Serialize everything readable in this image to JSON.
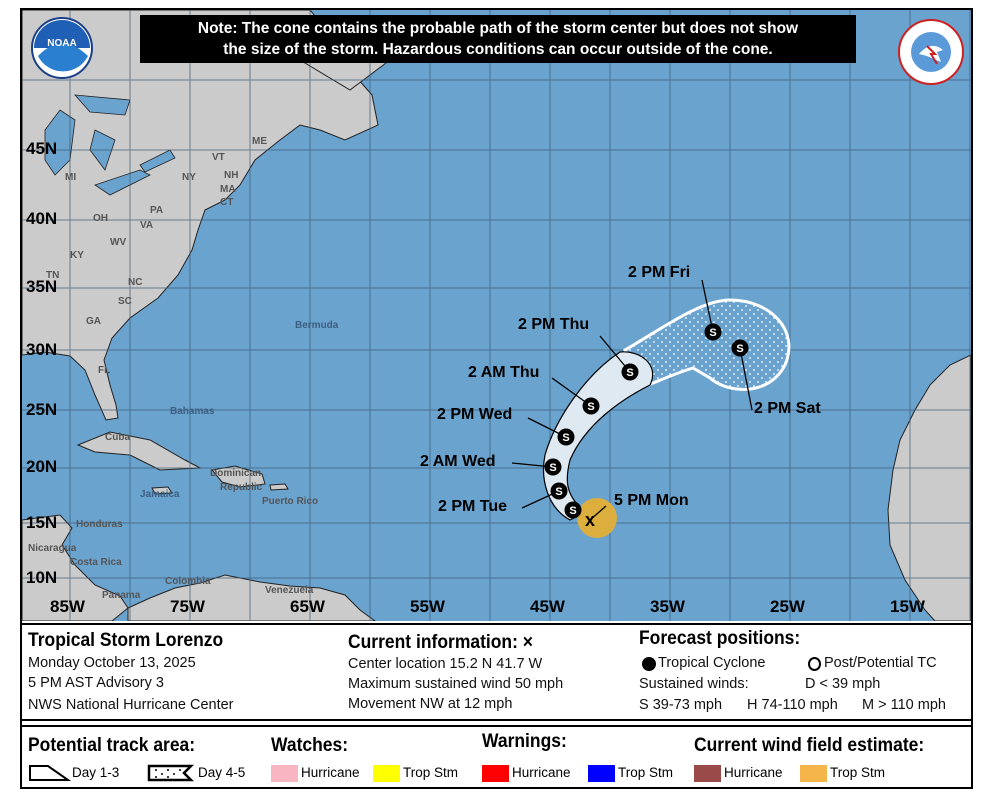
{
  "note": {
    "line1": "Note: The cone contains the probable path of the storm center but does not show",
    "line2": "the size of the storm. Hazardous conditions can occur outside of the cone."
  },
  "logos": {
    "noaa": "NOAA",
    "nws": "NATIONAL WEATHER SERVICE"
  },
  "map": {
    "colors": {
      "ocean": "#6ba3cf",
      "land": "#cbcbcb",
      "cone_day13": "#dfe9f2",
      "wind_ts": "#f0b43c",
      "grid": "#4a6a85"
    },
    "lat_labels": [
      "45N",
      "40N",
      "35N",
      "30N",
      "25N",
      "20N",
      "15N",
      "10N"
    ],
    "lon_labels": [
      "85W",
      "75W",
      "65W",
      "55W",
      "45W",
      "35W",
      "25W",
      "15W"
    ],
    "place_labels": [
      "MI",
      "NY",
      "VT",
      "NH",
      "ME",
      "MA",
      "CT",
      "PA",
      "OH",
      "WV",
      "VA",
      "KY",
      "TN",
      "NC",
      "SC",
      "GA",
      "FL",
      "Bermuda",
      "Bahamas",
      "Cuba",
      "Dominican",
      "Republic",
      "Puerto Rico",
      "Jamaica",
      "Honduras",
      "Nicaragua",
      "Costa Rica",
      "Panama",
      "Colombia",
      "Venezuela"
    ],
    "current_marker": "x",
    "forecast_points": [
      {
        "label": "5 PM Mon",
        "type": "current"
      },
      {
        "label": "2 PM Tue",
        "type": "S"
      },
      {
        "label": "2 AM Wed",
        "type": "S"
      },
      {
        "label": "2 PM Wed",
        "type": "S"
      },
      {
        "label": "2 AM Thu",
        "type": "S"
      },
      {
        "label": "2 PM Thu",
        "type": "S"
      },
      {
        "label": "2 PM Fri",
        "type": "S"
      },
      {
        "label": "2 PM Sat",
        "type": "S"
      }
    ]
  },
  "info": {
    "storm_name": "Tropical Storm Lorenzo",
    "date": "Monday October 13, 2025",
    "advisory": "5 PM AST Advisory 3",
    "center": "NWS National Hurricane Center",
    "current_title": "Current information: ×",
    "location": "Center location 15.2 N 41.7 W",
    "max_wind": "Maximum sustained wind 50 mph",
    "movement": "Movement NW at 12 mph",
    "forecast_title": "Forecast positions:",
    "tc_label": "Tropical Cyclone",
    "ptc_label": "Post/Potential TC",
    "sustained": "Sustained winds:",
    "d_range": "D < 39 mph",
    "s_range": "S 39-73 mph",
    "h_range": "H 74-110 mph",
    "m_range": "M > 110 mph"
  },
  "legend": {
    "track_title": "Potential track area:",
    "day13": "Day 1-3",
    "day45": "Day 4-5",
    "watches_title": "Watches:",
    "warnings_title": "Warnings:",
    "wind_title": "Current wind field estimate:",
    "items": [
      {
        "label": "Hurricane",
        "color": "#f7b6c2"
      },
      {
        "label": "Trop Stm",
        "color": "#ffff00"
      },
      {
        "label": "Hurricane",
        "color": "#ff0000"
      },
      {
        "label": "Trop Stm",
        "color": "#0000ff"
      },
      {
        "label": "Hurricane",
        "color": "#9b4a4a"
      },
      {
        "label": "Trop Stm",
        "color": "#f5b54a"
      }
    ]
  }
}
